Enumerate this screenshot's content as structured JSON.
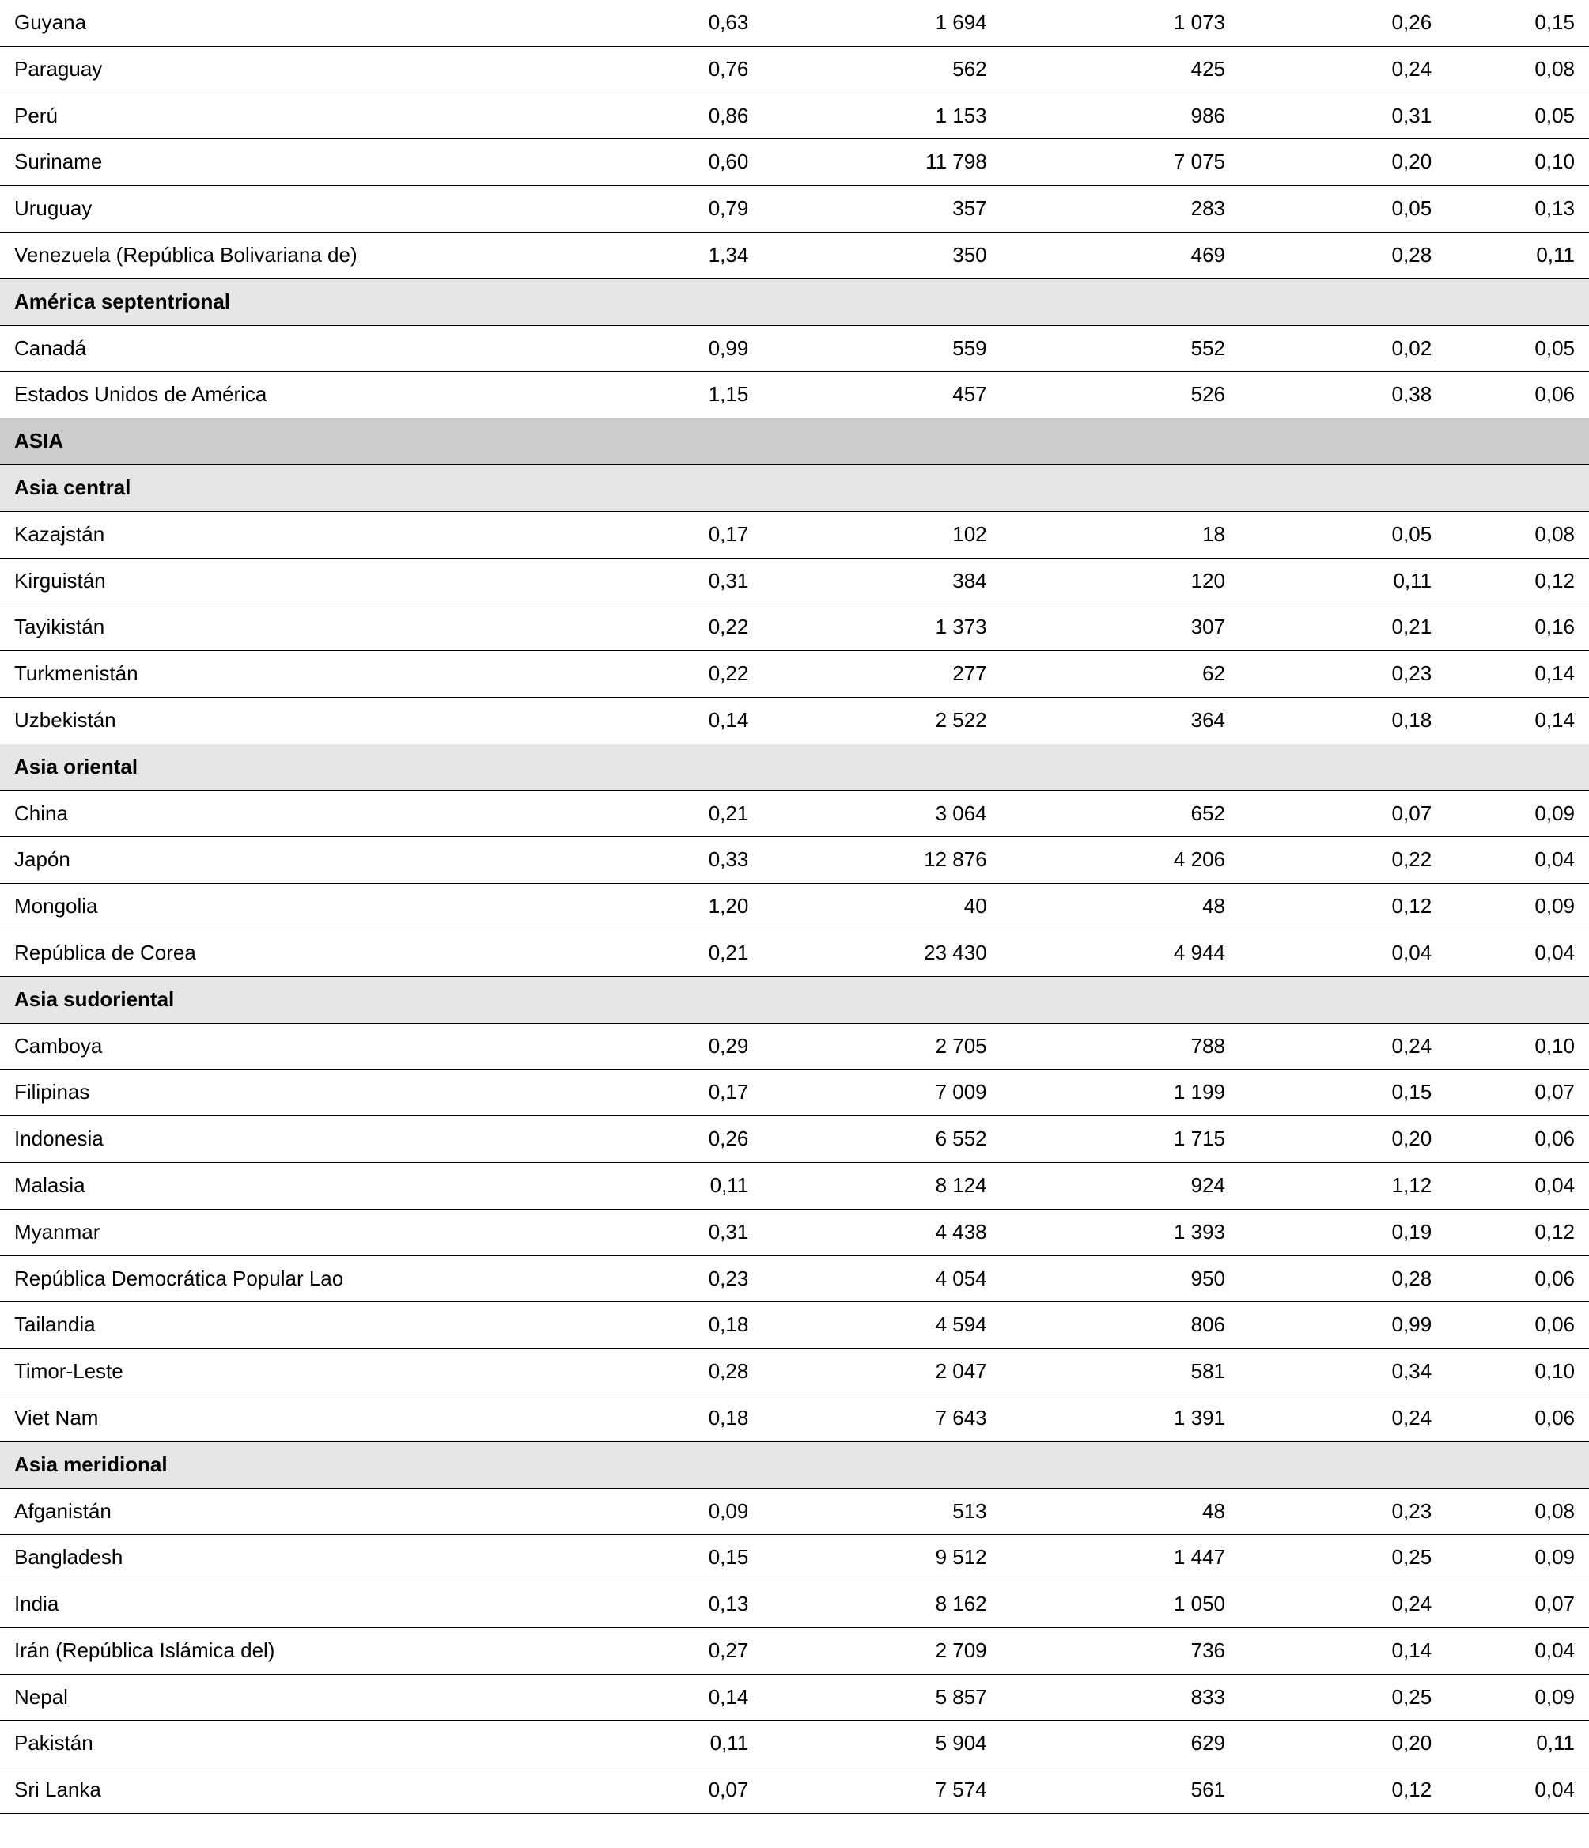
{
  "table": {
    "background_color": "#ffffff",
    "border_color": "#000000",
    "row_bg_data": "#ffffff",
    "row_bg_subheader": "#e6e6e6",
    "row_bg_region": "#cccccc",
    "text_color": "#000000",
    "font_size_pt": 20,
    "column_align": [
      "left",
      "right",
      "right",
      "right",
      "right",
      "right"
    ],
    "column_widths_pct": [
      35,
      13,
      15,
      15,
      13,
      9
    ],
    "rows": [
      {
        "type": "data",
        "cells": [
          "Guyana",
          "0,63",
          "1 694",
          "1 073",
          "0,26",
          "0,15"
        ]
      },
      {
        "type": "data",
        "cells": [
          "Paraguay",
          "0,76",
          "562",
          "425",
          "0,24",
          "0,08"
        ]
      },
      {
        "type": "data",
        "cells": [
          "Perú",
          "0,86",
          "1 153",
          "986",
          "0,31",
          "0,05"
        ]
      },
      {
        "type": "data",
        "cells": [
          "Suriname",
          "0,60",
          "11 798",
          "7 075",
          "0,20",
          "0,10"
        ]
      },
      {
        "type": "data",
        "cells": [
          "Uruguay",
          "0,79",
          "357",
          "283",
          "0,05",
          "0,13"
        ]
      },
      {
        "type": "data",
        "cells": [
          "Venezuela (República Bolivariana de)",
          "1,34",
          "350",
          "469",
          "0,28",
          "0,11"
        ]
      },
      {
        "type": "sub",
        "cells": [
          "América septentrional",
          "",
          "",
          "",
          "",
          ""
        ]
      },
      {
        "type": "data",
        "cells": [
          "Canadá",
          "0,99",
          "559",
          "552",
          "0,02",
          "0,05"
        ]
      },
      {
        "type": "data",
        "cells": [
          "Estados Unidos de América",
          "1,15",
          "457",
          "526",
          "0,38",
          "0,06"
        ]
      },
      {
        "type": "region",
        "cells": [
          "ASIA",
          "",
          "",
          "",
          "",
          ""
        ]
      },
      {
        "type": "sub",
        "cells": [
          "Asia central",
          "",
          "",
          "",
          "",
          ""
        ]
      },
      {
        "type": "data",
        "cells": [
          "Kazajstán",
          "0,17",
          "102",
          "18",
          "0,05",
          "0,08"
        ]
      },
      {
        "type": "data",
        "cells": [
          "Kirguistán",
          "0,31",
          "384",
          "120",
          "0,11",
          "0,12"
        ]
      },
      {
        "type": "data",
        "cells": [
          "Tayikistán",
          "0,22",
          "1 373",
          "307",
          "0,21",
          "0,16"
        ]
      },
      {
        "type": "data",
        "cells": [
          "Turkmenistán",
          "0,22",
          "277",
          "62",
          "0,23",
          "0,14"
        ]
      },
      {
        "type": "data",
        "cells": [
          "Uzbekistán",
          "0,14",
          "2 522",
          "364",
          "0,18",
          "0,14"
        ]
      },
      {
        "type": "sub",
        "cells": [
          "Asia oriental",
          "",
          "",
          "",
          "",
          ""
        ]
      },
      {
        "type": "data",
        "cells": [
          "China",
          "0,21",
          "3 064",
          "652",
          "0,07",
          "0,09"
        ]
      },
      {
        "type": "data",
        "cells": [
          "Japón",
          "0,33",
          "12 876",
          "4 206",
          "0,22",
          "0,04"
        ]
      },
      {
        "type": "data",
        "cells": [
          "Mongolia",
          "1,20",
          "40",
          "48",
          "0,12",
          "0,09"
        ]
      },
      {
        "type": "data",
        "cells": [
          "República de Corea",
          "0,21",
          "23 430",
          "4 944",
          "0,04",
          "0,04"
        ]
      },
      {
        "type": "sub",
        "cells": [
          "Asia sudoriental",
          "",
          "",
          "",
          "",
          ""
        ]
      },
      {
        "type": "data",
        "cells": [
          "Camboya",
          "0,29",
          "2 705",
          "788",
          "0,24",
          "0,10"
        ]
      },
      {
        "type": "data",
        "cells": [
          "Filipinas",
          "0,17",
          "7 009",
          "1 199",
          "0,15",
          "0,07"
        ]
      },
      {
        "type": "data",
        "cells": [
          "Indonesia",
          "0,26",
          "6 552",
          "1 715",
          "0,20",
          "0,06"
        ]
      },
      {
        "type": "data",
        "cells": [
          "Malasia",
          "0,11",
          "8 124",
          "924",
          "1,12",
          "0,04"
        ]
      },
      {
        "type": "data",
        "cells": [
          "Myanmar",
          "0,31",
          "4 438",
          "1 393",
          "0,19",
          "0,12"
        ]
      },
      {
        "type": "data",
        "cells": [
          "República Democrática Popular Lao",
          "0,23",
          "4 054",
          "950",
          "0,28",
          "0,06"
        ]
      },
      {
        "type": "data",
        "cells": [
          "Tailandia",
          "0,18",
          "4 594",
          "806",
          "0,99",
          "0,06"
        ]
      },
      {
        "type": "data",
        "cells": [
          "Timor-Leste",
          "0,28",
          "2 047",
          "581",
          "0,34",
          "0,10"
        ]
      },
      {
        "type": "data",
        "cells": [
          "Viet Nam",
          "0,18",
          "7 643",
          "1 391",
          "0,24",
          "0,06"
        ]
      },
      {
        "type": "sub",
        "cells": [
          "Asia meridional",
          "",
          "",
          "",
          "",
          ""
        ]
      },
      {
        "type": "data",
        "cells": [
          "Afganistán",
          "0,09",
          "513",
          "48",
          "0,23",
          "0,08"
        ]
      },
      {
        "type": "data",
        "cells": [
          "Bangladesh",
          "0,15",
          "9 512",
          "1 447",
          "0,25",
          "0,09"
        ]
      },
      {
        "type": "data",
        "cells": [
          "India",
          "0,13",
          "8 162",
          "1 050",
          "0,24",
          "0,07"
        ]
      },
      {
        "type": "data",
        "cells": [
          "Irán (República Islámica del)",
          "0,27",
          "2 709",
          "736",
          "0,14",
          "0,04"
        ]
      },
      {
        "type": "data",
        "cells": [
          "Nepal",
          "0,14",
          "5 857",
          "833",
          "0,25",
          "0,09"
        ]
      },
      {
        "type": "data",
        "cells": [
          "Pakistán",
          "0,11",
          "5 904",
          "629",
          "0,20",
          "0,11"
        ]
      },
      {
        "type": "data",
        "cells": [
          "Sri Lanka",
          "0,07",
          "7 574",
          "561",
          "0,12",
          "0,04"
        ]
      }
    ]
  }
}
